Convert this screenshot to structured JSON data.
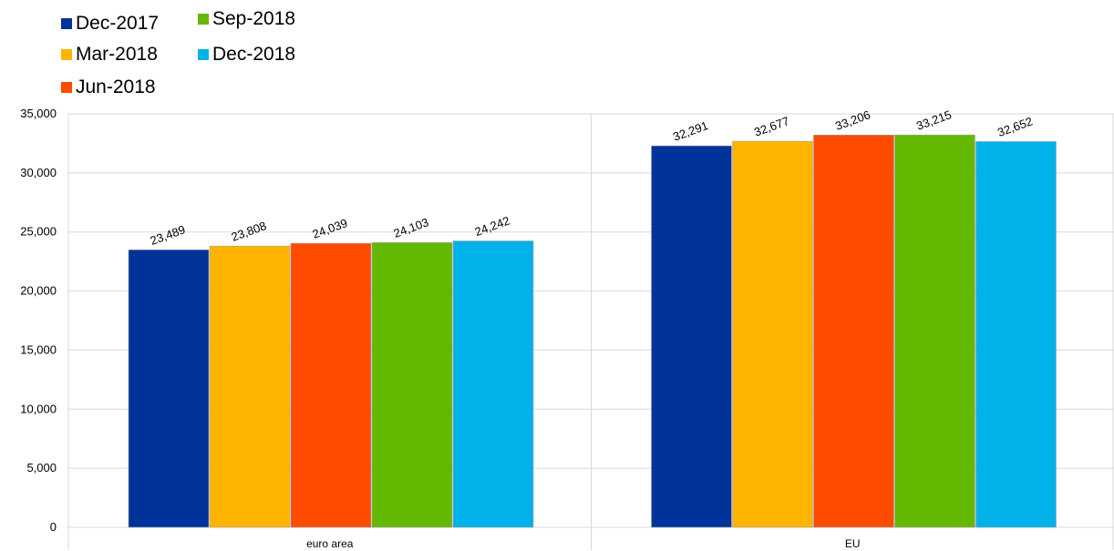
{
  "chart_data": {
    "type": "bar",
    "categories": [
      "euro area",
      "EU"
    ],
    "series": [
      {
        "name": "Dec-2017",
        "color": "#003399",
        "values": [
          23489,
          32291
        ],
        "labels": [
          "23,489",
          "32,291"
        ]
      },
      {
        "name": "Mar-2018",
        "color": "#FFB400",
        "values": [
          23808,
          32677
        ],
        "labels": [
          "23,808",
          "32,677"
        ]
      },
      {
        "name": "Jun-2018",
        "color": "#FF4B00",
        "values": [
          24039,
          33206
        ],
        "labels": [
          "24,039",
          "33,206"
        ]
      },
      {
        "name": "Sep-2018",
        "color": "#65B800",
        "values": [
          24103,
          33215
        ],
        "labels": [
          "24,103",
          "33,215"
        ]
      },
      {
        "name": "Dec-2018",
        "color": "#00B1EA",
        "values": [
          24242,
          32652
        ],
        "labels": [
          "24,242",
          "32,652"
        ]
      }
    ],
    "yticks": [
      "0",
      "5,000",
      "10,000",
      "15,000",
      "20,000",
      "25,000",
      "30,000",
      "35,000"
    ],
    "ylim": [
      0,
      35000
    ],
    "grid": true,
    "legend_position": "top-left"
  }
}
